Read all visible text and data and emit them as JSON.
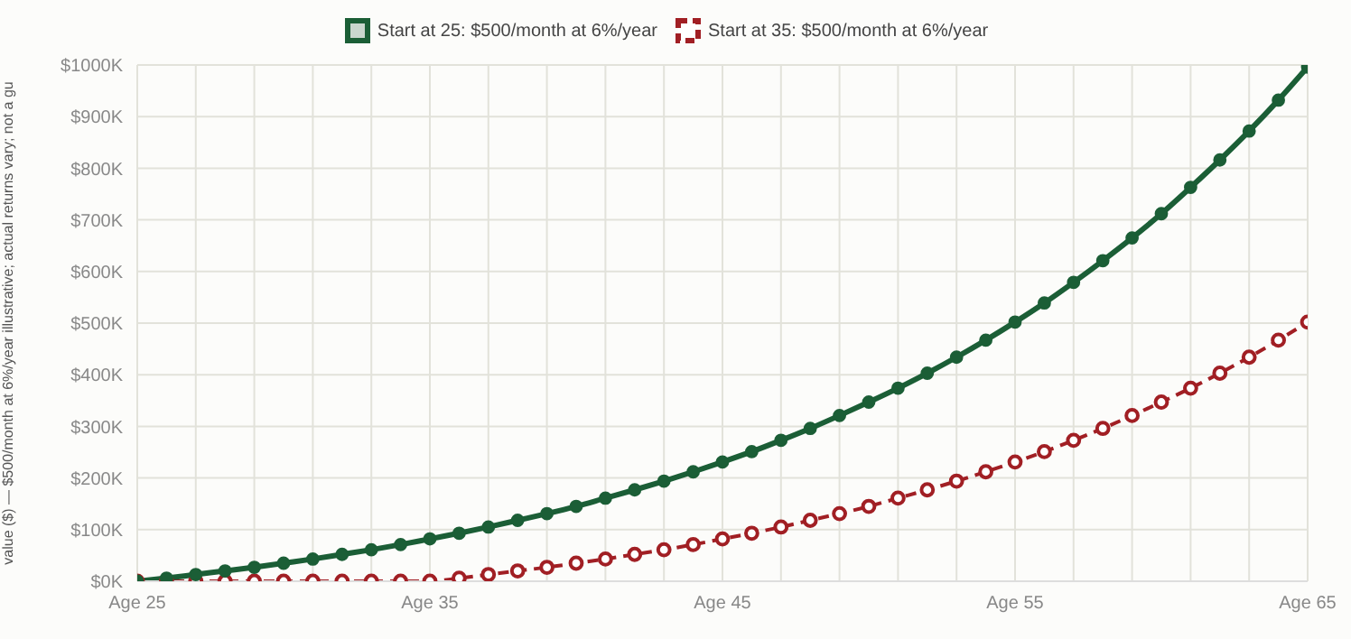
{
  "chart_data": {
    "type": "line",
    "ylabel": "value ($) — $500/month at 6%/year illustrative; actual returns vary; not a gu",
    "categories": [
      "Age 25",
      null,
      null,
      null,
      null,
      null,
      null,
      null,
      null,
      null,
      "Age 35",
      null,
      null,
      null,
      null,
      null,
      null,
      null,
      null,
      null,
      "Age 45",
      null,
      null,
      null,
      null,
      null,
      null,
      null,
      null,
      null,
      "Age 55",
      null,
      null,
      null,
      null,
      null,
      null,
      null,
      null,
      null,
      "Age 65"
    ],
    "series": [
      {
        "name": "Start at 25: $500/month at 6%/year",
        "color": "#1b5e36",
        "line_style": "solid",
        "marker": "circle",
        "values": [
          0,
          6,
          13,
          20,
          27,
          35,
          43,
          52,
          61,
          71,
          82,
          93,
          105,
          118,
          131,
          145,
          161,
          177,
          194,
          212,
          231,
          251,
          273,
          296,
          321,
          347,
          374,
          403,
          434,
          467,
          502,
          539,
          579,
          621,
          665,
          712,
          763,
          816,
          872,
          932,
          996
        ]
      },
      {
        "name": "Start at 35: $500/month at 6%/year",
        "color": "#a11f24",
        "line_style": "dashed",
        "marker": "circle",
        "values": [
          0,
          0,
          0,
          0,
          0,
          0,
          0,
          0,
          0,
          0,
          0,
          6,
          13,
          20,
          27,
          35,
          43,
          52,
          61,
          71,
          82,
          93,
          105,
          118,
          131,
          145,
          161,
          177,
          194,
          212,
          231,
          251,
          273,
          296,
          321,
          347,
          374,
          403,
          434,
          467,
          502
        ]
      }
    ],
    "ylim": [
      0,
      1000
    ],
    "yticks": [
      {
        "value": 0,
        "label": "$0K"
      },
      {
        "value": 100,
        "label": "$100K"
      },
      {
        "value": 200,
        "label": "$200K"
      },
      {
        "value": 300,
        "label": "$300K"
      },
      {
        "value": 400,
        "label": "$400K"
      },
      {
        "value": 500,
        "label": "$500K"
      },
      {
        "value": 600,
        "label": "$600K"
      },
      {
        "value": 700,
        "label": "$700K"
      },
      {
        "value": 800,
        "label": "$800K"
      },
      {
        "value": 900,
        "label": "$900K"
      },
      {
        "value": 1000,
        "label": "$1000K"
      }
    ],
    "grid": true,
    "legend": "top"
  }
}
